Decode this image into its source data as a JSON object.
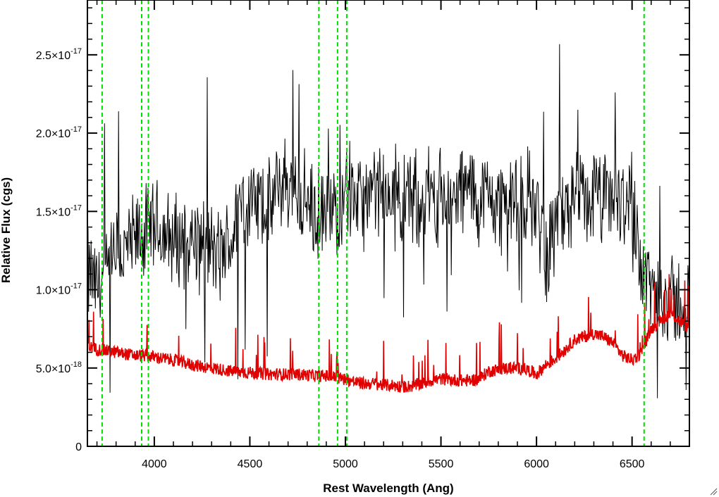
{
  "chart_data": {
    "type": "line",
    "title": "",
    "xlabel": "Rest Wavelength (Ang)",
    "ylabel": "Relative Flux (cgs)",
    "xlim": [
      3650,
      6800
    ],
    "ylim": [
      0,
      2.85e-17
    ],
    "xticks": [
      4000,
      4500,
      5000,
      5500,
      6000,
      6500
    ],
    "xtick_labels": [
      "4000",
      "4500",
      "5000",
      "5500",
      "6000",
      "6500"
    ],
    "yticks": [
      {
        "value": 0,
        "mantissa": "0",
        "exponent": ""
      },
      {
        "value": 5e-18,
        "mantissa": "5.0×10",
        "exponent": "-18"
      },
      {
        "value": 1e-17,
        "mantissa": "1.0×10",
        "exponent": "-17"
      },
      {
        "value": 1.5e-17,
        "mantissa": "1.5×10",
        "exponent": "-17"
      },
      {
        "value": 2e-17,
        "mantissa": "2.0×10",
        "exponent": "-17"
      },
      {
        "value": 2.5e-17,
        "mantissa": "2.5×10",
        "exponent": "-17"
      }
    ],
    "grid": false,
    "legend": "none",
    "colors": {
      "spectrum": "#000000",
      "error": "#e00000",
      "lines": "#00e000",
      "axes": "#000000"
    },
    "vertical_lines_x": [
      3727,
      3934,
      3969,
      4861,
      4959,
      5007,
      6563
    ],
    "series": [
      {
        "style": "black",
        "x": [
          3650,
          3700,
          3750,
          3800,
          3850,
          3900,
          3950,
          4000,
          4050,
          4100,
          4150,
          4200,
          4250,
          4300,
          4350,
          4400,
          4450,
          4500,
          4550,
          4600,
          4650,
          4700,
          4750,
          4800,
          4850,
          4900,
          4950,
          5000,
          5050,
          5100,
          5150,
          5200,
          5250,
          5300,
          5350,
          5400,
          5450,
          5500,
          5550,
          5600,
          5650,
          5700,
          5750,
          5800,
          5850,
          5900,
          5950,
          6000,
          6050,
          6100,
          6150,
          6200,
          6250,
          6300,
          6350,
          6400,
          6450,
          6500,
          6550,
          6600,
          6650,
          6700,
          6750,
          6800
        ],
        "y": [
          1.1e-17,
          1e-17,
          1.1e-17,
          1.2e-17,
          1.25e-17,
          1.3e-17,
          1.35e-17,
          1.4e-17,
          1.35e-17,
          1.3e-17,
          1.35e-17,
          1.3e-17,
          1.3e-17,
          1.25e-17,
          1.2e-17,
          1.3e-17,
          1.55e-17,
          1.55e-17,
          1.55e-17,
          1.5e-17,
          1.65e-17,
          1.7e-17,
          1.6e-17,
          1.55e-17,
          1.45e-17,
          1.45e-17,
          1.5e-17,
          1.7e-17,
          1.6e-17,
          1.55e-17,
          1.6e-17,
          1.6e-17,
          1.6e-17,
          1.6e-17,
          1.55e-17,
          1.6e-17,
          1.6e-17,
          1.6e-17,
          1.55e-17,
          1.6e-17,
          1.65e-17,
          1.55e-17,
          1.6e-17,
          1.55e-17,
          1.6e-17,
          1.5e-17,
          1.6e-17,
          1.55e-17,
          1.2e-17,
          1.45e-17,
          1.5e-17,
          1.55e-17,
          1.55e-17,
          1.6e-17,
          1.55e-17,
          1.6e-17,
          1.55e-17,
          1.6e-17,
          1.15e-17,
          1e-17,
          1e-17,
          9.5e-18,
          9e-18,
          8.5e-18
        ],
        "noise_amplitude": 2.5e-18
      },
      {
        "style": "red",
        "x": [
          3650,
          3700,
          3750,
          3800,
          3850,
          3900,
          3950,
          4000,
          4050,
          4100,
          4150,
          4200,
          4250,
          4300,
          4350,
          4400,
          4450,
          4500,
          4550,
          4600,
          4650,
          4700,
          4750,
          4800,
          4850,
          4900,
          4950,
          5000,
          5050,
          5100,
          5150,
          5200,
          5250,
          5300,
          5350,
          5400,
          5450,
          5500,
          5550,
          5600,
          5650,
          5700,
          5750,
          5800,
          5850,
          5900,
          5950,
          6000,
          6050,
          6100,
          6150,
          6200,
          6250,
          6300,
          6350,
          6400,
          6450,
          6500,
          6550,
          6600,
          6650,
          6700,
          6750,
          6800
        ],
        "y": [
          6.4e-18,
          6.2e-18,
          6.1e-18,
          6e-18,
          5.9e-18,
          5.8e-18,
          5.8e-18,
          5.7e-18,
          5.6e-18,
          5.5e-18,
          5.35e-18,
          5.2e-18,
          5.1e-18,
          5e-18,
          4.9e-18,
          4.8e-18,
          4.75e-18,
          4.7e-18,
          4.65e-18,
          4.6e-18,
          4.6e-18,
          4.6e-18,
          4.6e-18,
          4.55e-18,
          4.5e-18,
          4.5e-18,
          4.4e-18,
          4.3e-18,
          4.1e-18,
          4e-18,
          4e-18,
          3.9e-18,
          3.9e-18,
          3.8e-18,
          3.85e-18,
          4e-18,
          4.2e-18,
          4.3e-18,
          4.25e-18,
          4.2e-18,
          4.2e-18,
          4.3e-18,
          4.8e-18,
          4.9e-18,
          5e-18,
          5e-18,
          4.9e-18,
          4.6e-18,
          5.2e-18,
          5.6e-18,
          6.2e-18,
          6.8e-18,
          7e-18,
          7.2e-18,
          7e-18,
          6.6e-18,
          5.8e-18,
          5.5e-18,
          6e-18,
          7.5e-18,
          8e-18,
          8.5e-18,
          8e-18,
          7.5e-18
        ],
        "noise_amplitude": 4e-19
      }
    ]
  }
}
